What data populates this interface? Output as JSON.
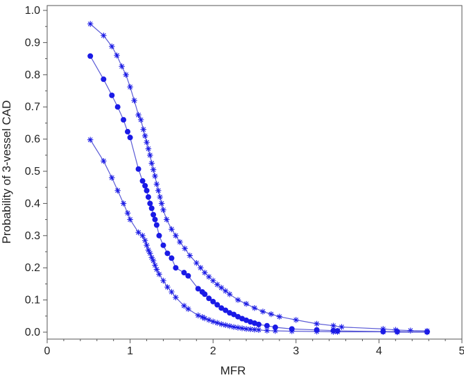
{
  "chart_data": {
    "type": "line",
    "xlabel": "MFR",
    "ylabel": "Probability of 3-vessel CAD",
    "xlim": [
      0,
      5
    ],
    "ylim": [
      0,
      1.0
    ],
    "x_ticks": [
      "0",
      "1",
      "2",
      "3",
      "4",
      "5"
    ],
    "y_ticks": [
      "0.0",
      "0.1",
      "0.2",
      "0.3",
      "0.4",
      "0.5",
      "0.6",
      "0.7",
      "0.8",
      "0.9",
      "1.0"
    ],
    "grid": false,
    "legend": "none",
    "colors": {
      "line": "#5b5bd6",
      "marker": "#1a1ae6"
    },
    "series": [
      {
        "role": "upper",
        "marker": "star",
        "x": [
          0.52,
          0.68,
          0.78,
          0.84,
          0.9,
          0.95,
          1.0,
          1.05,
          1.1,
          1.13,
          1.16,
          1.18,
          1.2,
          1.22,
          1.24,
          1.26,
          1.28,
          1.3,
          1.32,
          1.34,
          1.36,
          1.38,
          1.4,
          1.44,
          1.5,
          1.55,
          1.6,
          1.66,
          1.72,
          1.8,
          1.85,
          1.9,
          1.95,
          2.0,
          2.05,
          2.1,
          2.15,
          2.2,
          2.3,
          2.4,
          2.5,
          2.6,
          2.7,
          2.8,
          3.0,
          3.25,
          3.45,
          3.55,
          4.05,
          4.2,
          4.38,
          4.58
        ],
        "y": [
          0.958,
          0.922,
          0.888,
          0.86,
          0.826,
          0.8,
          0.762,
          0.72,
          0.675,
          0.66,
          0.63,
          0.61,
          0.59,
          0.57,
          0.55,
          0.525,
          0.505,
          0.485,
          0.46,
          0.44,
          0.42,
          0.4,
          0.38,
          0.35,
          0.32,
          0.3,
          0.28,
          0.26,
          0.238,
          0.215,
          0.2,
          0.185,
          0.172,
          0.16,
          0.148,
          0.138,
          0.128,
          0.118,
          0.1,
          0.088,
          0.075,
          0.064,
          0.056,
          0.048,
          0.038,
          0.026,
          0.02,
          0.016,
          0.01,
          0.007,
          0.005,
          0.004
        ]
      },
      {
        "role": "estimate",
        "marker": "dot",
        "x": [
          0.52,
          0.68,
          0.78,
          0.85,
          0.92,
          0.97,
          1.0,
          1.1,
          1.15,
          1.18,
          1.2,
          1.22,
          1.24,
          1.26,
          1.28,
          1.3,
          1.32,
          1.35,
          1.4,
          1.45,
          1.5,
          1.55,
          1.65,
          1.7,
          1.82,
          1.87,
          1.9,
          1.95,
          2.0,
          2.05,
          2.1,
          2.15,
          2.2,
          2.25,
          2.3,
          2.35,
          2.4,
          2.45,
          2.5,
          2.55,
          2.65,
          2.75,
          2.95,
          3.25,
          3.45,
          3.5,
          4.05,
          4.22,
          4.58
        ],
        "y": [
          0.858,
          0.786,
          0.736,
          0.7,
          0.66,
          0.623,
          0.605,
          0.507,
          0.47,
          0.455,
          0.44,
          0.42,
          0.4,
          0.385,
          0.365,
          0.35,
          0.333,
          0.3,
          0.27,
          0.245,
          0.23,
          0.2,
          0.185,
          0.175,
          0.135,
          0.125,
          0.118,
          0.105,
          0.095,
          0.085,
          0.075,
          0.068,
          0.06,
          0.055,
          0.048,
          0.042,
          0.037,
          0.032,
          0.028,
          0.024,
          0.02,
          0.015,
          0.01,
          0.007,
          0.005,
          0.004,
          0.002,
          0.002,
          0.001
        ]
      },
      {
        "role": "lower",
        "marker": "star",
        "x": [
          0.52,
          0.68,
          0.78,
          0.85,
          0.92,
          0.97,
          1.0,
          1.1,
          1.15,
          1.18,
          1.2,
          1.22,
          1.24,
          1.26,
          1.28,
          1.3,
          1.32,
          1.35,
          1.4,
          1.45,
          1.5,
          1.55,
          1.65,
          1.7,
          1.82,
          1.87,
          1.9,
          1.95,
          2.0,
          2.05,
          2.1,
          2.15,
          2.2,
          2.25,
          2.3,
          2.35,
          2.4,
          2.45,
          2.5,
          2.55,
          2.65,
          2.75,
          2.95,
          3.25,
          3.45,
          3.5,
          4.05,
          4.22,
          4.58
        ],
        "y": [
          0.598,
          0.532,
          0.48,
          0.44,
          0.4,
          0.37,
          0.35,
          0.31,
          0.3,
          0.285,
          0.27,
          0.255,
          0.245,
          0.232,
          0.222,
          0.208,
          0.195,
          0.18,
          0.16,
          0.14,
          0.125,
          0.108,
          0.082,
          0.072,
          0.052,
          0.047,
          0.043,
          0.038,
          0.033,
          0.029,
          0.025,
          0.022,
          0.019,
          0.016,
          0.014,
          0.012,
          0.01,
          0.009,
          0.008,
          0.007,
          0.005,
          0.004,
          0.003,
          0.002,
          0.001,
          0.001,
          0.001,
          0.0,
          0.0
        ]
      }
    ]
  }
}
